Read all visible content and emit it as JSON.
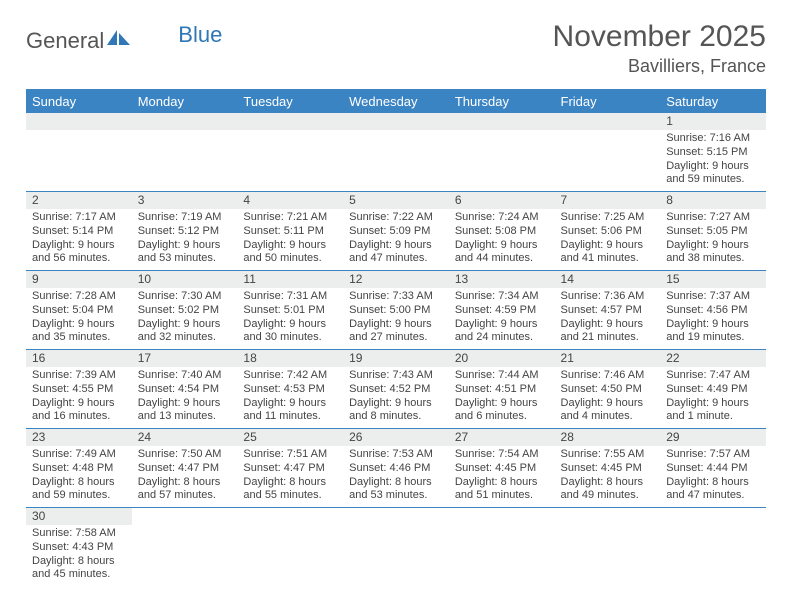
{
  "colors": {
    "accent": "#3b84c4",
    "header_bg": "#3b84c4",
    "daynum_bg": "#eceeee",
    "text": "#444444",
    "title": "#555555",
    "logo_blue": "#2f77b6",
    "cell_border": "#3b84c4"
  },
  "logo": {
    "part1": "General",
    "part2": "Blue"
  },
  "title": "November 2025",
  "location": "Bavilliers, France",
  "weekdays": [
    "Sunday",
    "Monday",
    "Tuesday",
    "Wednesday",
    "Thursday",
    "Friday",
    "Saturday"
  ],
  "weeks": [
    [
      null,
      null,
      null,
      null,
      null,
      null,
      {
        "n": "1",
        "sunrise": "7:16 AM",
        "sunset": "5:15 PM",
        "daylight": "9 hours and 59 minutes."
      }
    ],
    [
      {
        "n": "2",
        "sunrise": "7:17 AM",
        "sunset": "5:14 PM",
        "daylight": "9 hours and 56 minutes."
      },
      {
        "n": "3",
        "sunrise": "7:19 AM",
        "sunset": "5:12 PM",
        "daylight": "9 hours and 53 minutes."
      },
      {
        "n": "4",
        "sunrise": "7:21 AM",
        "sunset": "5:11 PM",
        "daylight": "9 hours and 50 minutes."
      },
      {
        "n": "5",
        "sunrise": "7:22 AM",
        "sunset": "5:09 PM",
        "daylight": "9 hours and 47 minutes."
      },
      {
        "n": "6",
        "sunrise": "7:24 AM",
        "sunset": "5:08 PM",
        "daylight": "9 hours and 44 minutes."
      },
      {
        "n": "7",
        "sunrise": "7:25 AM",
        "sunset": "5:06 PM",
        "daylight": "9 hours and 41 minutes."
      },
      {
        "n": "8",
        "sunrise": "7:27 AM",
        "sunset": "5:05 PM",
        "daylight": "9 hours and 38 minutes."
      }
    ],
    [
      {
        "n": "9",
        "sunrise": "7:28 AM",
        "sunset": "5:04 PM",
        "daylight": "9 hours and 35 minutes."
      },
      {
        "n": "10",
        "sunrise": "7:30 AM",
        "sunset": "5:02 PM",
        "daylight": "9 hours and 32 minutes."
      },
      {
        "n": "11",
        "sunrise": "7:31 AM",
        "sunset": "5:01 PM",
        "daylight": "9 hours and 30 minutes."
      },
      {
        "n": "12",
        "sunrise": "7:33 AM",
        "sunset": "5:00 PM",
        "daylight": "9 hours and 27 minutes."
      },
      {
        "n": "13",
        "sunrise": "7:34 AM",
        "sunset": "4:59 PM",
        "daylight": "9 hours and 24 minutes."
      },
      {
        "n": "14",
        "sunrise": "7:36 AM",
        "sunset": "4:57 PM",
        "daylight": "9 hours and 21 minutes."
      },
      {
        "n": "15",
        "sunrise": "7:37 AM",
        "sunset": "4:56 PM",
        "daylight": "9 hours and 19 minutes."
      }
    ],
    [
      {
        "n": "16",
        "sunrise": "7:39 AM",
        "sunset": "4:55 PM",
        "daylight": "9 hours and 16 minutes."
      },
      {
        "n": "17",
        "sunrise": "7:40 AM",
        "sunset": "4:54 PM",
        "daylight": "9 hours and 13 minutes."
      },
      {
        "n": "18",
        "sunrise": "7:42 AM",
        "sunset": "4:53 PM",
        "daylight": "9 hours and 11 minutes."
      },
      {
        "n": "19",
        "sunrise": "7:43 AM",
        "sunset": "4:52 PM",
        "daylight": "9 hours and 8 minutes."
      },
      {
        "n": "20",
        "sunrise": "7:44 AM",
        "sunset": "4:51 PM",
        "daylight": "9 hours and 6 minutes."
      },
      {
        "n": "21",
        "sunrise": "7:46 AM",
        "sunset": "4:50 PM",
        "daylight": "9 hours and 4 minutes."
      },
      {
        "n": "22",
        "sunrise": "7:47 AM",
        "sunset": "4:49 PM",
        "daylight": "9 hours and 1 minute."
      }
    ],
    [
      {
        "n": "23",
        "sunrise": "7:49 AM",
        "sunset": "4:48 PM",
        "daylight": "8 hours and 59 minutes."
      },
      {
        "n": "24",
        "sunrise": "7:50 AM",
        "sunset": "4:47 PM",
        "daylight": "8 hours and 57 minutes."
      },
      {
        "n": "25",
        "sunrise": "7:51 AM",
        "sunset": "4:47 PM",
        "daylight": "8 hours and 55 minutes."
      },
      {
        "n": "26",
        "sunrise": "7:53 AM",
        "sunset": "4:46 PM",
        "daylight": "8 hours and 53 minutes."
      },
      {
        "n": "27",
        "sunrise": "7:54 AM",
        "sunset": "4:45 PM",
        "daylight": "8 hours and 51 minutes."
      },
      {
        "n": "28",
        "sunrise": "7:55 AM",
        "sunset": "4:45 PM",
        "daylight": "8 hours and 49 minutes."
      },
      {
        "n": "29",
        "sunrise": "7:57 AM",
        "sunset": "4:44 PM",
        "daylight": "8 hours and 47 minutes."
      }
    ],
    [
      {
        "n": "30",
        "sunrise": "7:58 AM",
        "sunset": "4:43 PM",
        "daylight": "8 hours and 45 minutes."
      },
      null,
      null,
      null,
      null,
      null,
      null
    ]
  ],
  "labels": {
    "sunrise_prefix": "Sunrise: ",
    "sunset_prefix": "Sunset: ",
    "daylight_prefix": "Daylight: "
  }
}
